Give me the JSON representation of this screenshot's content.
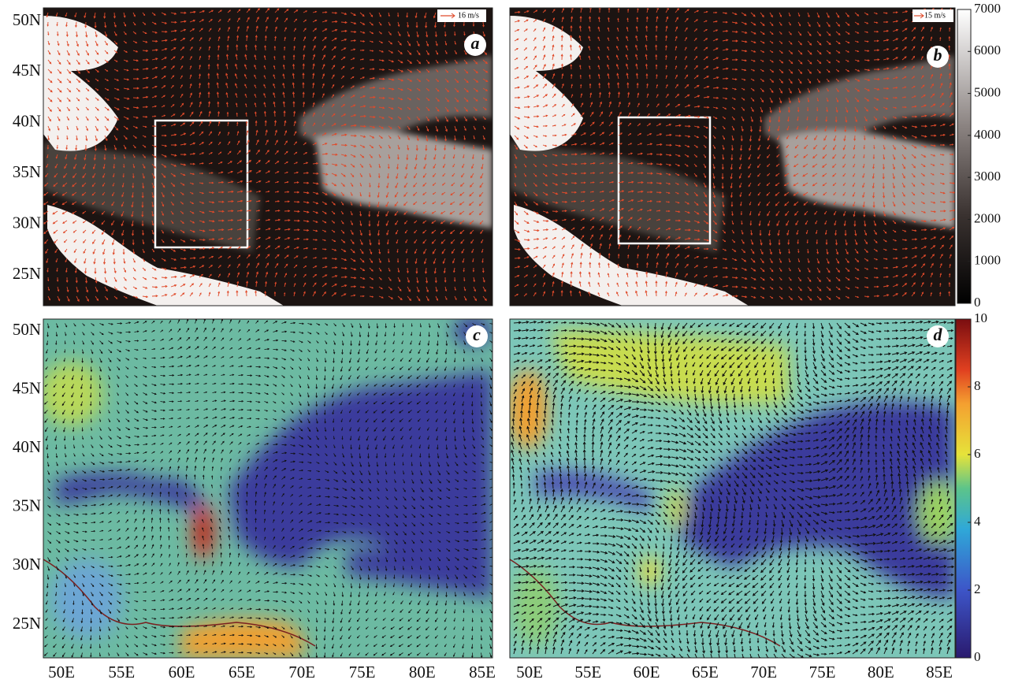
{
  "panels": [
    {
      "label": "a",
      "vector_legend": "16 m/s"
    },
    {
      "label": "b",
      "vector_legend": "15 m/s"
    },
    {
      "label": "c"
    },
    {
      "label": "d"
    }
  ],
  "latitude_labels": [
    "50N",
    "45N",
    "40N",
    "35N",
    "30N",
    "25N"
  ],
  "longitude_labels": [
    "50E",
    "55E",
    "60E",
    "65E",
    "70E",
    "75E",
    "80E",
    "85E"
  ],
  "colorbars": [
    {
      "lim": [
        0,
        7000
      ],
      "ticks": [
        0,
        1000,
        2000,
        3000,
        4000,
        5000,
        6000,
        7000
      ]
    },
    {
      "lim": [
        0,
        10
      ],
      "ticks": [
        0,
        2,
        4,
        6,
        8,
        10
      ]
    }
  ]
}
